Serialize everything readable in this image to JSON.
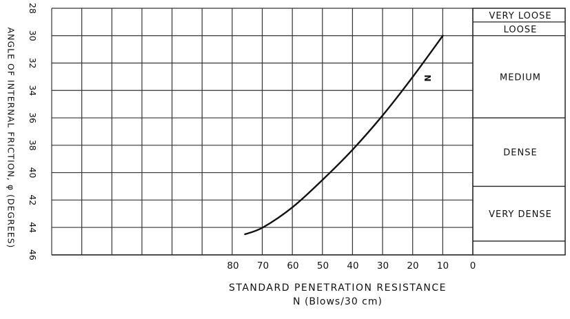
{
  "chart_data": {
    "type": "line",
    "ylabel": "ANGLE OF INTERNAL FRICTION, φ (DEGREES)",
    "xlabel_line1": "STANDARD PENETRATION RESISTANCE",
    "xlabel_line2": "N (Blows/30 cm)",
    "x_direction": "reversed",
    "xlim": [
      0,
      87
    ],
    "x_ticks": [
      80,
      70,
      60,
      50,
      40,
      30,
      20,
      10,
      0
    ],
    "x_tick_labels": [
      "80",
      "70",
      "60",
      "50",
      "40",
      "30",
      "20",
      "10",
      "0"
    ],
    "ylim": [
      28,
      46
    ],
    "y_direction": "downward",
    "y_ticks": [
      28,
      30,
      32,
      34,
      36,
      38,
      40,
      42,
      44,
      46
    ],
    "y_tick_labels": [
      "28",
      "30",
      "32",
      "34",
      "36",
      "38",
      "40",
      "42",
      "44",
      "46"
    ],
    "grid": true,
    "series": [
      {
        "name": "N",
        "color": "#111111",
        "x": [
          76,
          70,
          60,
          50,
          40,
          30,
          20,
          10
        ],
        "y": [
          44.5,
          44,
          42.5,
          40.5,
          38.3,
          35.8,
          33,
          30
        ]
      }
    ],
    "density_bands": [
      {
        "label": "VERY LOOSE",
        "from": 28,
        "to": 29
      },
      {
        "label": "LOOSE",
        "from": 29,
        "to": 30
      },
      {
        "label": "MEDIUM",
        "from": 30,
        "to": 36
      },
      {
        "label": "DENSE",
        "from": 36,
        "to": 41
      },
      {
        "label": "VERY DENSE",
        "from": 41,
        "to": 45
      }
    ]
  }
}
